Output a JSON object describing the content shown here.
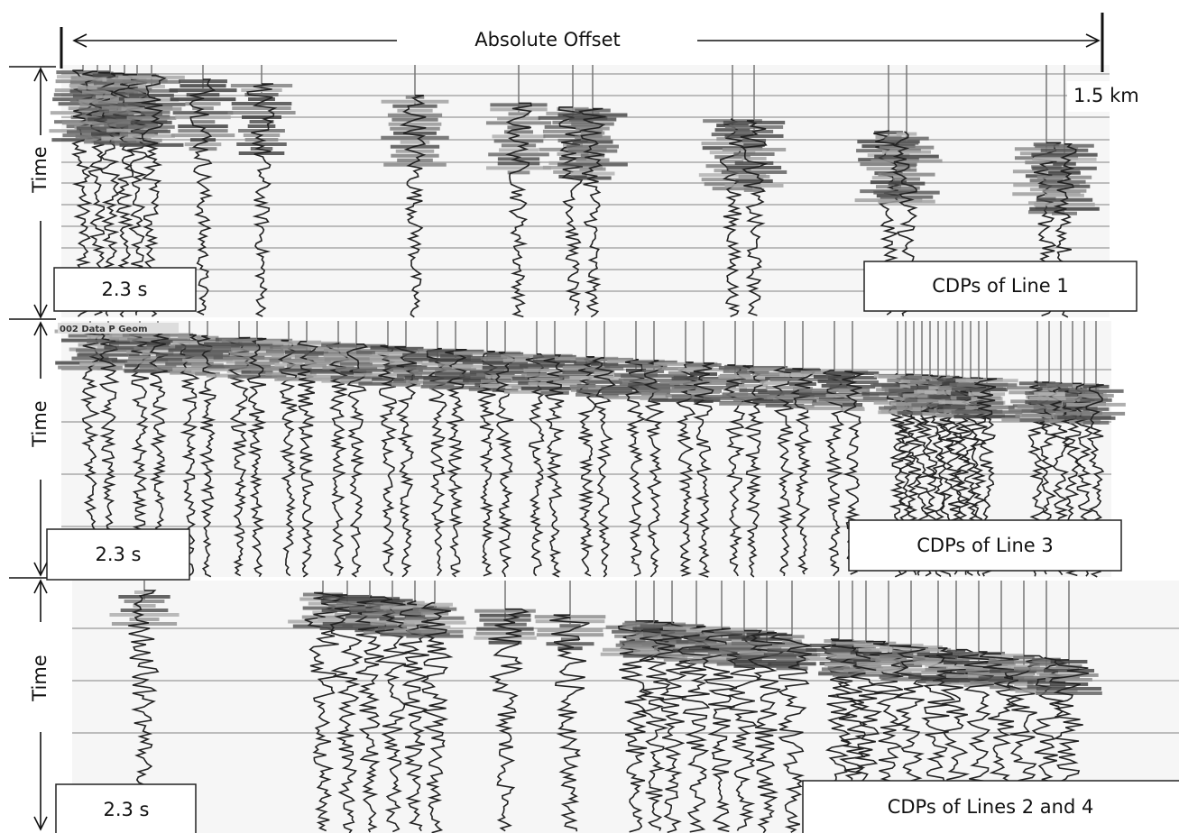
{
  "header": {
    "title": "Absolute Offset",
    "scale": "1.5 km"
  },
  "panels": [
    {
      "axis_label": "Time",
      "duration": "2.3 s",
      "caption": "CDPs of Line 1"
    },
    {
      "axis_label": "Time",
      "duration": "2.3 s",
      "caption": "CDPs of Line 3",
      "inset_label": "002 Data P Geom"
    },
    {
      "axis_label": "Time",
      "duration": "2.3 s",
      "caption": "CDPs of Lines 2 and 4"
    }
  ]
}
